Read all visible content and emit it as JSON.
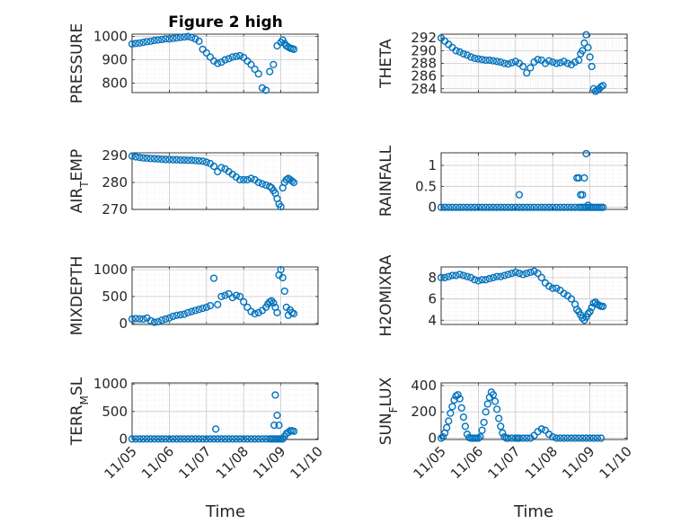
{
  "title": "Figure 2 high",
  "colors": {
    "marker": "#0072BD",
    "grid": "#c8c8c8",
    "axis": "#262626"
  },
  "chart_data": [
    {
      "type": "scatter",
      "ylabel": "PRESSURE",
      "ylabel_sub": "",
      "ylabel_suffix": "",
      "xlim": [
        0,
        5
      ],
      "ylim": [
        760,
        1010
      ],
      "yticks": [
        800,
        900,
        1000
      ],
      "x": [
        0.0,
        0.1,
        0.2,
        0.3,
        0.4,
        0.5,
        0.6,
        0.7,
        0.8,
        0.9,
        1.0,
        1.1,
        1.2,
        1.3,
        1.4,
        1.5,
        1.6,
        1.7,
        1.8,
        1.9,
        2.0,
        2.1,
        2.2,
        2.3,
        2.4,
        2.5,
        2.6,
        2.7,
        2.8,
        2.9,
        3.0,
        3.1,
        3.2,
        3.3,
        3.4,
        3.5,
        3.6,
        3.7,
        3.8,
        3.9,
        4.0,
        4.05,
        4.1,
        4.15,
        4.2,
        4.25,
        4.3,
        4.35
      ],
      "y": [
        968,
        970,
        972,
        975,
        978,
        980,
        983,
        985,
        987,
        990,
        990,
        992,
        994,
        996,
        998,
        1000,
        996,
        990,
        980,
        945,
        930,
        912,
        895,
        885,
        890,
        900,
        905,
        912,
        915,
        918,
        910,
        895,
        880,
        860,
        840,
        780,
        770,
        850,
        880,
        960,
        975,
        985,
        970,
        960,
        955,
        950,
        948,
        945
      ]
    },
    {
      "type": "scatter",
      "ylabel": "THETA",
      "ylabel_sub": "",
      "ylabel_suffix": "",
      "xlim": [
        0,
        5
      ],
      "ylim": [
        283.4,
        292.6
      ],
      "yticks": [
        284,
        286,
        288,
        290,
        292
      ],
      "x": [
        0.0,
        0.1,
        0.2,
        0.3,
        0.4,
        0.5,
        0.6,
        0.7,
        0.8,
        0.9,
        1.0,
        1.1,
        1.2,
        1.3,
        1.4,
        1.5,
        1.6,
        1.7,
        1.8,
        1.9,
        2.0,
        2.1,
        2.2,
        2.3,
        2.4,
        2.5,
        2.6,
        2.7,
        2.8,
        2.9,
        3.0,
        3.1,
        3.2,
        3.3,
        3.4,
        3.5,
        3.6,
        3.7,
        3.75,
        3.8,
        3.85,
        3.9,
        3.95,
        4.0,
        4.05,
        4.1,
        4.15,
        4.2,
        4.25,
        4.3,
        4.35
      ],
      "y": [
        292,
        291.5,
        291,
        290.5,
        290,
        289.8,
        289.5,
        289.3,
        289,
        288.8,
        288.7,
        288.6,
        288.5,
        288.5,
        288.4,
        288.3,
        288.2,
        288,
        287.9,
        288.1,
        288.3,
        288,
        287.5,
        286.5,
        287.3,
        288.2,
        288.6,
        288.5,
        288,
        288.4,
        288.2,
        288,
        288.1,
        288.3,
        288,
        287.8,
        288.2,
        288.5,
        289.5,
        290,
        291.2,
        292.5,
        290.5,
        289,
        287.5,
        284,
        283.6,
        283.8,
        284,
        284.3,
        284.5
      ]
    },
    {
      "type": "scatter",
      "ylabel": "AIR",
      "ylabel_sub": "T",
      "ylabel_suffix": "EMP",
      "xlim": [
        0,
        5
      ],
      "ylim": [
        270,
        291
      ],
      "yticks": [
        270,
        280,
        290
      ],
      "x": [
        0.0,
        0.1,
        0.2,
        0.3,
        0.4,
        0.5,
        0.6,
        0.7,
        0.8,
        0.9,
        1.0,
        1.1,
        1.2,
        1.3,
        1.4,
        1.5,
        1.6,
        1.7,
        1.8,
        1.9,
        2.0,
        2.1,
        2.2,
        2.3,
        2.4,
        2.5,
        2.6,
        2.7,
        2.8,
        2.9,
        3.0,
        3.1,
        3.2,
        3.3,
        3.4,
        3.5,
        3.6,
        3.7,
        3.75,
        3.8,
        3.85,
        3.9,
        3.95,
        4.0,
        4.05,
        4.1,
        4.15,
        4.2,
        4.25,
        4.3,
        4.35
      ],
      "y": [
        289.8,
        289.5,
        289.3,
        289.1,
        289,
        288.9,
        288.8,
        288.7,
        288.6,
        288.5,
        288.5,
        288.4,
        288.4,
        288.3,
        288.3,
        288.2,
        288.2,
        288.1,
        288,
        287.9,
        287.5,
        287,
        286,
        284,
        285.5,
        285,
        284,
        283,
        282,
        281,
        281,
        281,
        281.5,
        281,
        280,
        279.5,
        279,
        278.5,
        278,
        277,
        276,
        274,
        272,
        271,
        278,
        280,
        281,
        281.5,
        281,
        280.5,
        280
      ]
    },
    {
      "type": "scatter",
      "ylabel": "RAINFALL",
      "ylabel_sub": "",
      "ylabel_suffix": "",
      "xlim": [
        0,
        5
      ],
      "ylim": [
        -0.05,
        1.3
      ],
      "yticks": [
        0,
        0.5,
        1
      ],
      "x": [
        0.0,
        0.1,
        0.2,
        0.3,
        0.4,
        0.5,
        0.6,
        0.7,
        0.8,
        0.9,
        1.0,
        1.1,
        1.2,
        1.3,
        1.4,
        1.5,
        1.6,
        1.7,
        1.8,
        1.9,
        2.0,
        2.1,
        2.2,
        2.3,
        2.4,
        2.5,
        2.6,
        2.7,
        2.8,
        2.9,
        3.0,
        3.1,
        3.2,
        3.3,
        3.4,
        3.5,
        3.6,
        3.7,
        3.75,
        3.8,
        3.85,
        3.9,
        3.95,
        4.0,
        4.05,
        4.1,
        4.15,
        4.2,
        4.25,
        4.3,
        4.35,
        2.1,
        3.65,
        3.7,
        3.75,
        3.8,
        3.85,
        3.9,
        3.95
      ],
      "y": [
        0,
        0,
        0,
        0,
        0,
        0,
        0,
        0,
        0,
        0,
        0,
        0,
        0,
        0,
        0,
        0,
        0,
        0,
        0,
        0,
        0,
        0,
        0,
        0,
        0,
        0,
        0,
        0,
        0,
        0,
        0,
        0,
        0,
        0,
        0,
        0,
        0,
        0,
        0,
        0,
        0,
        0,
        0,
        0,
        0,
        0,
        0,
        0,
        0,
        0,
        0,
        0.3,
        0.7,
        0.7,
        0.3,
        0.3,
        0.7,
        1.28,
        0.05
      ]
    },
    {
      "type": "scatter",
      "ylabel": "MIXDEPTH",
      "ylabel_sub": "",
      "ylabel_suffix": "",
      "xlim": [
        0,
        5
      ],
      "ylim": [
        -20,
        1050
      ],
      "yticks": [
        0,
        500,
        1000
      ],
      "x": [
        0.0,
        0.1,
        0.2,
        0.3,
        0.4,
        0.5,
        0.6,
        0.7,
        0.8,
        0.9,
        1.0,
        1.1,
        1.2,
        1.3,
        1.4,
        1.5,
        1.6,
        1.7,
        1.8,
        1.9,
        2.0,
        2.1,
        2.2,
        2.3,
        2.4,
        2.5,
        2.6,
        2.7,
        2.8,
        2.9,
        3.0,
        3.1,
        3.2,
        3.3,
        3.4,
        3.5,
        3.6,
        3.65,
        3.7,
        3.75,
        3.8,
        3.85,
        3.9,
        3.95,
        4.0,
        4.05,
        4.1,
        4.15,
        4.2,
        4.25,
        4.3,
        4.35
      ],
      "y": [
        80,
        90,
        85,
        80,
        100,
        50,
        20,
        30,
        60,
        80,
        100,
        130,
        150,
        160,
        170,
        200,
        220,
        240,
        260,
        280,
        300,
        330,
        840,
        350,
        500,
        520,
        550,
        480,
        520,
        500,
        400,
        300,
        220,
        180,
        200,
        240,
        300,
        360,
        400,
        420,
        380,
        300,
        200,
        900,
        1000,
        850,
        600,
        300,
        150,
        250,
        200,
        180
      ]
    },
    {
      "type": "scatter",
      "ylabel": "H2OMIXRA",
      "ylabel_sub": "",
      "ylabel_suffix": "",
      "xlim": [
        0,
        5
      ],
      "ylim": [
        3.6,
        9
      ],
      "yticks": [
        4,
        6,
        8
      ],
      "x": [
        0.0,
        0.1,
        0.2,
        0.3,
        0.4,
        0.5,
        0.6,
        0.7,
        0.8,
        0.9,
        1.0,
        1.1,
        1.2,
        1.3,
        1.4,
        1.5,
        1.6,
        1.7,
        1.8,
        1.9,
        2.0,
        2.1,
        2.2,
        2.3,
        2.4,
        2.5,
        2.6,
        2.7,
        2.8,
        2.9,
        3.0,
        3.1,
        3.2,
        3.3,
        3.4,
        3.5,
        3.6,
        3.65,
        3.7,
        3.75,
        3.8,
        3.85,
        3.9,
        3.95,
        4.0,
        4.05,
        4.1,
        4.15,
        4.2,
        4.25,
        4.3,
        4.35
      ],
      "y": [
        8,
        8,
        8.1,
        8.2,
        8.2,
        8.3,
        8.2,
        8.1,
        8,
        7.8,
        7.7,
        7.8,
        7.8,
        7.9,
        8,
        8.1,
        8.1,
        8.2,
        8.3,
        8.4,
        8.5,
        8.4,
        8.3,
        8.4,
        8.5,
        8.6,
        8.4,
        8,
        7.5,
        7.2,
        7,
        7,
        6.8,
        6.5,
        6.3,
        6,
        5.5,
        5,
        4.8,
        4.5,
        4.2,
        4,
        4.3,
        4.6,
        4.8,
        5.2,
        5.6,
        5.7,
        5.5,
        5.4,
        5.3,
        5.3
      ]
    },
    {
      "type": "scatter",
      "ylabel": "TERR",
      "ylabel_sub": "M",
      "ylabel_suffix": "SL",
      "xlim": [
        0,
        5
      ],
      "ylim": [
        -10,
        1020
      ],
      "yticks": [
        0,
        500,
        1000
      ],
      "x": [
        0.0,
        0.1,
        0.2,
        0.3,
        0.4,
        0.5,
        0.6,
        0.7,
        0.8,
        0.9,
        1.0,
        1.1,
        1.2,
        1.3,
        1.4,
        1.5,
        1.6,
        1.7,
        1.8,
        1.9,
        2.0,
        2.1,
        2.2,
        2.3,
        2.4,
        2.5,
        2.6,
        2.7,
        2.8,
        2.9,
        3.0,
        3.1,
        3.2,
        3.3,
        3.4,
        3.5,
        3.6,
        3.7,
        3.75,
        3.8,
        3.85,
        3.9,
        3.95,
        4.0,
        4.05,
        4.1,
        4.15,
        4.2,
        4.25,
        4.3,
        4.35,
        2.25,
        3.82,
        3.85,
        3.9,
        3.95
      ],
      "y": [
        0,
        0,
        0,
        0,
        0,
        0,
        0,
        0,
        0,
        0,
        0,
        0,
        0,
        0,
        0,
        0,
        0,
        0,
        0,
        0,
        0,
        0,
        0,
        0,
        0,
        0,
        0,
        0,
        0,
        0,
        0,
        0,
        0,
        0,
        0,
        0,
        0,
        0,
        0,
        0,
        0,
        0,
        0,
        0,
        0,
        50,
        100,
        120,
        150,
        150,
        140,
        180,
        250,
        800,
        430,
        250
      ]
    },
    {
      "type": "scatter",
      "ylabel": "SUN",
      "ylabel_sub": "F",
      "ylabel_suffix": "LUX",
      "xlim": [
        0,
        5
      ],
      "ylim": [
        -10,
        420
      ],
      "yticks": [
        0,
        200,
        400
      ],
      "x": [
        0.0,
        0.05,
        0.1,
        0.15,
        0.2,
        0.25,
        0.3,
        0.35,
        0.4,
        0.45,
        0.5,
        0.55,
        0.6,
        0.65,
        0.7,
        0.75,
        0.8,
        0.85,
        0.9,
        0.95,
        1.0,
        1.05,
        1.1,
        1.15,
        1.2,
        1.25,
        1.3,
        1.35,
        1.4,
        1.45,
        1.5,
        1.55,
        1.6,
        1.65,
        1.7,
        1.75,
        1.8,
        1.9,
        2.0,
        2.05,
        2.1,
        2.2,
        2.3,
        2.4,
        2.5,
        2.6,
        2.7,
        2.8,
        2.9,
        3.0,
        3.1,
        3.2,
        3.3,
        3.4,
        3.5,
        3.6,
        3.7,
        3.8,
        3.9,
        4.0,
        4.1,
        4.2,
        4.3
      ],
      "y": [
        0,
        10,
        40,
        80,
        130,
        190,
        240,
        290,
        320,
        330,
        300,
        230,
        160,
        90,
        30,
        5,
        0,
        0,
        0,
        0,
        0,
        10,
        60,
        120,
        200,
        260,
        310,
        350,
        330,
        280,
        220,
        150,
        90,
        40,
        10,
        0,
        0,
        0,
        0,
        0,
        0,
        0,
        0,
        0,
        20,
        50,
        70,
        60,
        30,
        10,
        0,
        0,
        0,
        0,
        0,
        0,
        0,
        0,
        0,
        0,
        0,
        0,
        0
      ]
    }
  ],
  "xticks": [
    "11/05",
    "11/06",
    "11/07",
    "11/08",
    "11/09",
    "11/10"
  ],
  "xlabel_left": "Time",
  "xlabel_right": "Time"
}
